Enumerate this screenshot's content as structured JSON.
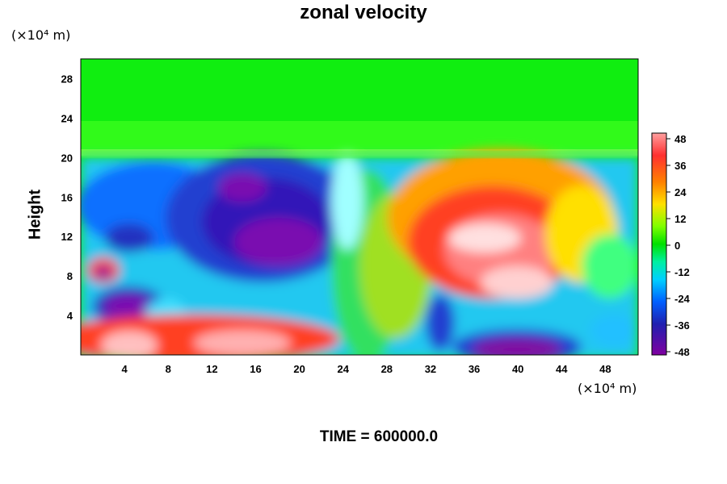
{
  "chart_data": {
    "type": "heatmap",
    "title": "zonal velocity",
    "ylabel": "Height",
    "xlabel": "",
    "x_unit_label": "(×10⁴ m)",
    "y_unit_label": "(×10⁴ m)",
    "x_ticks": [
      4,
      8,
      12,
      16,
      20,
      24,
      28,
      32,
      36,
      40,
      44,
      48
    ],
    "y_ticks": [
      4,
      8,
      12,
      16,
      20,
      24,
      28
    ],
    "xlim": [
      0,
      51
    ],
    "ylim": [
      0,
      30
    ],
    "colorbar": {
      "ticks": [
        48,
        36,
        24,
        12,
        0,
        -12,
        -24,
        -36,
        -48
      ],
      "range": [
        -48,
        48
      ],
      "colormap": "rainbow: purple (-48) → blue → cyan → green (0) → yellow → orange → red → pink (48)"
    },
    "features": [
      {
        "x": 16,
        "y": 12,
        "value": -48,
        "desc": "strong westward core"
      },
      {
        "x": 39,
        "y": 9,
        "value": 48,
        "desc": "strong eastward core"
      },
      {
        "x": 6,
        "y": 5,
        "value": -45
      },
      {
        "x": 40,
        "y": 1,
        "value": -48
      },
      {
        "x": 16,
        "y": 1.5,
        "value": 45
      },
      {
        "x": 30,
        "y": 24,
        "value": 0,
        "desc": "near-zero flow above ~20"
      }
    ],
    "grid": false
  },
  "footer": {
    "time_text": "TIME = 600000.0"
  }
}
